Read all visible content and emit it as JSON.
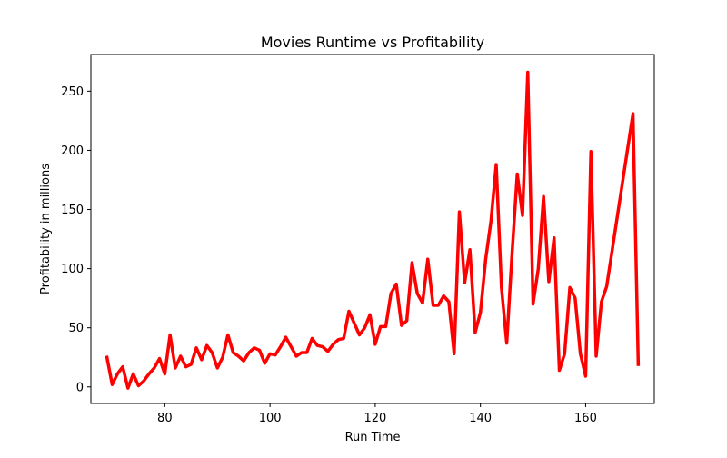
{
  "chart_data": {
    "type": "line",
    "title": "Movies Runtime vs Profitability",
    "xlabel": "Run Time",
    "ylabel": "Profitability in millions",
    "xlim": [
      65.95,
      173.05
    ],
    "ylim": [
      -14.0,
      281.0
    ],
    "xticks": [
      80,
      100,
      120,
      140,
      160
    ],
    "yticks": [
      0,
      50,
      100,
      150,
      200,
      250
    ],
    "grid": false,
    "legend": "none",
    "line_color": "#ff0000",
    "series": [
      {
        "x": [
          69,
          70,
          71,
          72,
          73,
          74,
          75,
          76,
          77,
          78,
          79,
          80,
          81,
          82,
          83,
          84,
          85,
          86,
          87,
          88,
          89,
          90,
          91,
          92,
          93,
          94,
          95,
          96,
          97,
          98,
          99,
          100,
          101,
          102,
          103,
          104,
          105,
          106,
          107,
          108,
          109,
          110,
          111,
          112,
          113,
          114,
          115,
          116,
          117,
          118,
          119,
          120,
          121,
          122,
          123,
          124,
          125,
          126,
          127,
          128,
          129,
          130,
          131,
          132,
          133,
          134,
          135,
          136,
          137,
          138,
          139,
          140,
          141,
          142,
          143,
          144,
          145,
          146,
          147,
          148,
          149,
          150,
          151,
          152,
          153,
          154,
          155,
          156,
          157,
          158,
          159,
          160,
          161,
          162,
          163,
          164,
          169,
          170
        ],
        "y": [
          25,
          2,
          11,
          17,
          -1,
          11,
          1,
          5,
          11,
          16,
          24,
          11,
          44,
          16,
          26,
          17,
          19,
          33,
          23,
          35,
          29,
          16,
          25,
          44,
          29,
          26,
          22,
          29,
          33,
          31,
          20,
          28,
          27,
          34,
          42,
          34,
          26,
          29,
          29,
          41,
          35,
          34,
          30,
          36,
          40,
          41,
          64,
          54,
          44,
          50,
          61,
          36,
          51,
          51,
          79,
          87,
          52,
          56,
          105,
          79,
          71,
          108,
          69,
          69,
          77,
          72,
          28,
          148,
          88,
          116,
          46,
          63,
          108,
          140,
          188,
          84,
          37,
          112,
          180,
          145,
          266,
          70,
          100,
          161,
          89,
          126,
          14,
          28,
          84,
          75,
          28,
          9,
          199,
          26,
          72,
          85,
          231,
          19
        ]
      }
    ]
  }
}
